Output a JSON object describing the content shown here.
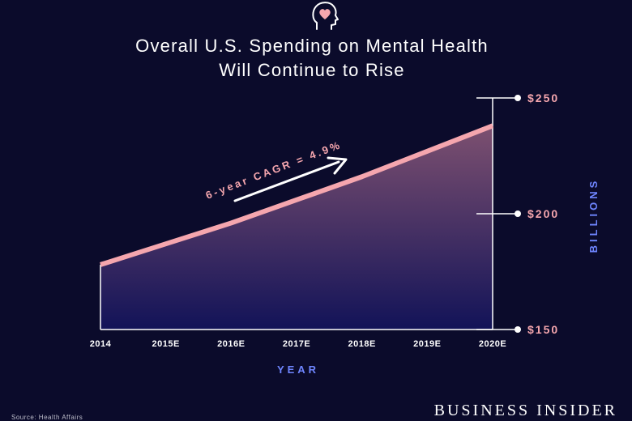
{
  "header": {
    "icon": "head-heart-icon",
    "title_line1": "Overall U.S. Spending on Mental Health",
    "title_line2": "Will Continue to Rise"
  },
  "chart_data": {
    "type": "area",
    "categories": [
      "2014",
      "2015E",
      "2016E",
      "2017E",
      "2018E",
      "2019E",
      "2020E"
    ],
    "series": [
      {
        "values": [
          178,
          187,
          196,
          206,
          216,
          227,
          238
        ]
      }
    ],
    "ylim": [
      150,
      250
    ],
    "yticks": [
      {
        "value": 250,
        "label": "$250"
      },
      {
        "value": 200,
        "label": "$200"
      },
      {
        "value": 150,
        "label": "$150"
      }
    ],
    "xlabel": "YEAR",
    "ylabel": "BILLIONS",
    "y_axis_side": "right",
    "grid": false,
    "annotation": "6-year CAGR = 4.9%",
    "colors": {
      "background": "#0b0b2b",
      "line": "#f5a6ae",
      "area_top": "#7d5070",
      "area_bottom": "#121358",
      "tick_label": "#f5a6ae",
      "axis_label": "#6f86ff",
      "x_tick_label": "#ffffff"
    }
  },
  "footer": {
    "brand": "BUSINESS INSIDER",
    "source": "Source: Health Affairs"
  }
}
